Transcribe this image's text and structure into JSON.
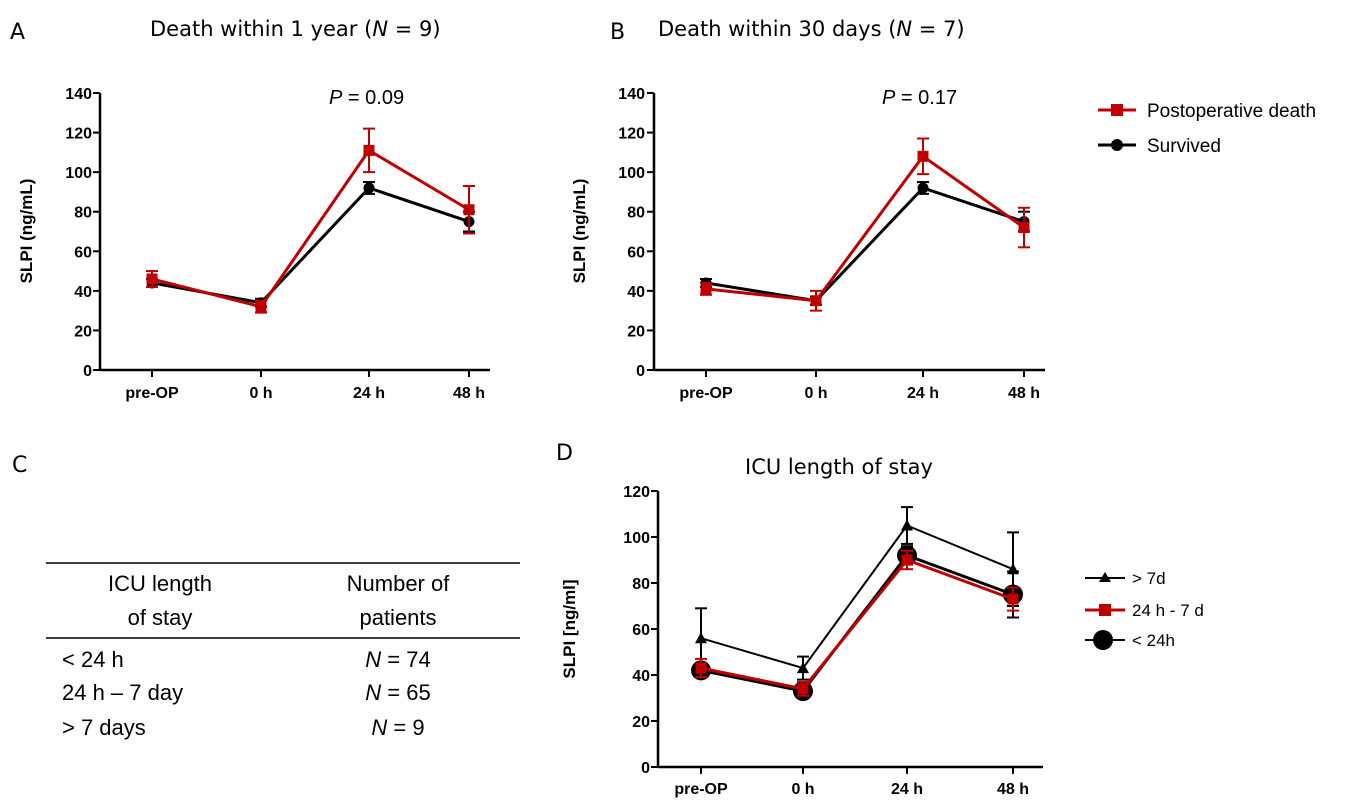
{
  "panels": {
    "A": {
      "letter": "A",
      "title_text": "Death within 1 year (",
      "title_n": "N",
      "title_rest": " = 9)",
      "p_label": "P",
      "p_value": " = 0.09"
    },
    "B": {
      "letter": "B",
      "title_text": "Death within 30 days (",
      "title_n": "N",
      "title_rest": " = 7)",
      "p_label": "P",
      "p_value": " = 0.17"
    },
    "C": {
      "letter": "C"
    },
    "D": {
      "letter": "D",
      "title": "ICU length of stay"
    }
  },
  "legend_ab": {
    "death": "Postoperative death",
    "survived": "Survived"
  },
  "legend_d": {
    "gt7": "> 7d",
    "h24_7d": "24 h - 7 d",
    "lt24": "< 24h"
  },
  "table": {
    "header_col1_line1": "ICU length",
    "header_col1_line2": "of stay",
    "header_col2_line1": "Number of",
    "header_col2_line2": "patients",
    "rows": [
      {
        "stay": "< 24 h",
        "n_label": "N",
        "n_value": " = 74"
      },
      {
        "stay": "24 h – 7 day",
        "n_label": "N",
        "n_value": " = 65"
      },
      {
        "stay": "> 7 days",
        "n_label": "N",
        "n_value": " = 9"
      }
    ]
  },
  "colors": {
    "red": "#c00000",
    "black": "#000000"
  },
  "chart_data": [
    {
      "panel": "A",
      "type": "line",
      "title": "Death within 1 year (N = 9)",
      "ylabel": "SLPI (ng/mL)",
      "xlabel": "",
      "categories": [
        "pre-OP",
        "0 h",
        "24 h",
        "48 h"
      ],
      "ylim": [
        0,
        140
      ],
      "yticks": [
        0,
        20,
        40,
        60,
        80,
        100,
        120,
        140
      ],
      "annotation": "P = 0.09",
      "series": [
        {
          "name": "Postoperative death",
          "color": "#c00000",
          "marker": "square",
          "values": [
            46,
            32,
            111,
            81
          ],
          "err": [
            4,
            3,
            11,
            12
          ]
        },
        {
          "name": "Survived",
          "color": "#000000",
          "marker": "circle",
          "values": [
            44,
            34,
            92,
            75
          ],
          "err": [
            2,
            2,
            3,
            5
          ]
        }
      ]
    },
    {
      "panel": "B",
      "type": "line",
      "title": "Death within 30 days (N = 7)",
      "ylabel": "SLPI (ng/mL)",
      "xlabel": "",
      "categories": [
        "pre-OP",
        "0 h",
        "24 h",
        "48 h"
      ],
      "ylim": [
        0,
        140
      ],
      "yticks": [
        0,
        20,
        40,
        60,
        80,
        100,
        120,
        140
      ],
      "annotation": "P = 0.17",
      "series": [
        {
          "name": "Postoperative death",
          "color": "#c00000",
          "marker": "square",
          "values": [
            41,
            35,
            108,
            72
          ],
          "err": [
            3,
            5,
            9,
            10
          ]
        },
        {
          "name": "Survived",
          "color": "#000000",
          "marker": "circle",
          "values": [
            44,
            35,
            92,
            75
          ],
          "err": [
            2,
            2,
            3,
            5
          ]
        }
      ]
    },
    {
      "panel": "D",
      "type": "line",
      "title": "ICU length of stay",
      "ylabel": "SLPI [ng/ml]",
      "xlabel": "",
      "categories": [
        "pre-OP",
        "0 h",
        "24 h",
        "48 h"
      ],
      "ylim": [
        0,
        120
      ],
      "yticks": [
        0,
        20,
        40,
        60,
        80,
        100,
        120
      ],
      "series": [
        {
          "name": "> 7d",
          "color": "#000000",
          "marker": "triangle",
          "values": [
            56,
            43,
            105,
            86
          ],
          "err": [
            13,
            5,
            8,
            16
          ]
        },
        {
          "name": "24 h - 7 d",
          "color": "#c00000",
          "marker": "square",
          "values": [
            43,
            34,
            90,
            73
          ],
          "err": [
            4,
            3,
            4,
            5
          ]
        },
        {
          "name": "< 24h",
          "color": "#000000",
          "marker": "bigcircle",
          "values": [
            42,
            33,
            92,
            75
          ],
          "err": [
            3,
            3,
            4,
            10
          ]
        }
      ]
    }
  ]
}
